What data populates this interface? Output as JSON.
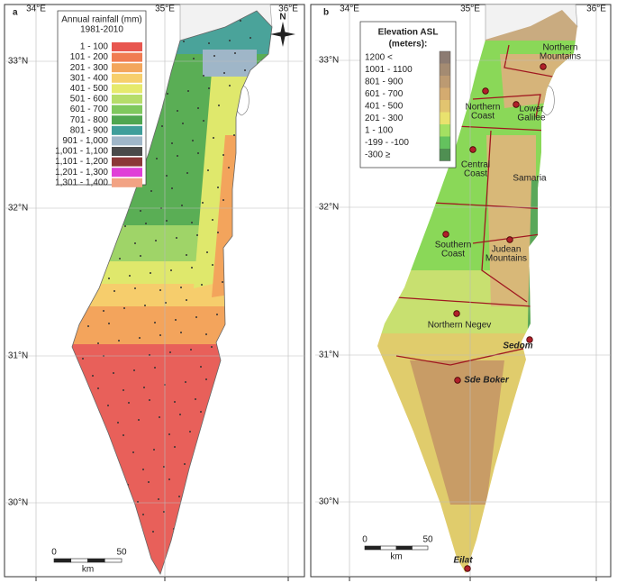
{
  "panels": [
    {
      "label": "a",
      "lon_labels": [
        "34°E",
        "35°E",
        "36°E"
      ],
      "lat_labels": [
        "33°N",
        "32°N",
        "31°N",
        "30°N"
      ],
      "legend": {
        "title": [
          "Annual rainfall (mm)",
          "1981-2010"
        ],
        "items": [
          {
            "label": "1 - 100",
            "color": "#e8564f"
          },
          {
            "label": "101 - 200",
            "color": "#f07c52"
          },
          {
            "label": "201 - 300",
            "color": "#f3a65c"
          },
          {
            "label": "301 - 400",
            "color": "#f7cf6c"
          },
          {
            "label": "401 - 500",
            "color": "#e6ea6c"
          },
          {
            "label": "501 - 600",
            "color": "#b6dd6a"
          },
          {
            "label": "601 - 700",
            "color": "#7fc85e"
          },
          {
            "label": "701 - 800",
            "color": "#4fa650"
          },
          {
            "label": "801 - 900",
            "color": "#3f9e9a"
          },
          {
            "label": "901 - 1,000",
            "color": "#9fb6c8"
          },
          {
            "label": "1,001 - 1,100",
            "color": "#4a4a4a"
          },
          {
            "label": "1,101 - 1,200",
            "color": "#8b3838"
          },
          {
            "label": "1,201 - 1,300",
            "color": "#e040d8"
          },
          {
            "label": "1,301 - 1,400",
            "color": "#f2a384"
          }
        ]
      },
      "compass": "N",
      "scale": {
        "ticks": [
          "0",
          "50"
        ],
        "unit": "km"
      }
    },
    {
      "label": "b",
      "lon_labels": [
        "34°E",
        "35°E",
        "36°E"
      ],
      "lat_labels": [
        "33°N",
        "32°N",
        "31°N",
        "30°N"
      ],
      "legend": {
        "title": [
          "Elevation ASL",
          "(meters):"
        ],
        "items": [
          {
            "label": "1200 <",
            "color": "#8c7b72"
          },
          {
            "label": "1001 - 1100",
            "color": "#a48b72"
          },
          {
            "label": "801 - 900",
            "color": "#bc9a72"
          },
          {
            "label": "601 - 700",
            "color": "#d4ab70"
          },
          {
            "label": "401 - 500",
            "color": "#e2c470"
          },
          {
            "label": "201 - 300",
            "color": "#e9e26e"
          },
          {
            "label": "1 - 100",
            "color": "#a4e062"
          },
          {
            "label": "-199 - -100",
            "color": "#64c25e"
          },
          {
            "label": "-300 ≥",
            "color": "#4f8f52"
          }
        ]
      },
      "places": [
        {
          "lines": [
            "Northern",
            "Mountains"
          ]
        },
        {
          "lines": [
            "Northern",
            "Coast"
          ]
        },
        {
          "lines": [
            "Lower",
            "Galilee"
          ]
        },
        {
          "lines": [
            "Central",
            "Coast"
          ]
        },
        {
          "lines": [
            "Samaria"
          ]
        },
        {
          "lines": [
            "Southern",
            "Coast"
          ]
        },
        {
          "lines": [
            "Judean",
            "Mountains"
          ]
        },
        {
          "lines": [
            "Northern Negev"
          ]
        },
        {
          "lines": [
            "Sedom"
          ]
        },
        {
          "lines": [
            "Sde Boker"
          ]
        },
        {
          "lines": [
            "Eilat"
          ]
        }
      ],
      "scale": {
        "ticks": [
          "0",
          "50"
        ],
        "unit": "km"
      }
    }
  ]
}
